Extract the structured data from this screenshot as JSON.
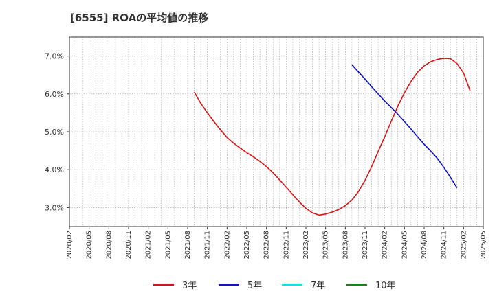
{
  "chart_data": {
    "type": "line",
    "title": "[6555]  ROAの平均値の推移",
    "xlabel": "",
    "ylabel": "",
    "ylim": [
      2.5,
      7.5
    ],
    "yticks": [
      3.0,
      4.0,
      5.0,
      6.0,
      7.0
    ],
    "ytick_labels": [
      "3.0%",
      "4.0%",
      "5.0%",
      "6.0%",
      "7.0%"
    ],
    "x_range": [
      "2020/02",
      "2025/05"
    ],
    "x_ticks": [
      "2020/02",
      "2020/05",
      "2020/08",
      "2020/11",
      "2021/02",
      "2021/05",
      "2021/08",
      "2021/11",
      "2022/02",
      "2022/05",
      "2022/08",
      "2022/11",
      "2023/02",
      "2023/05",
      "2023/08",
      "2023/11",
      "2024/02",
      "2024/05",
      "2024/08",
      "2024/11",
      "2025/02",
      "2025/05"
    ],
    "grid": true,
    "legend_position": "bottom",
    "series": [
      {
        "name": "3年",
        "color": "#dd1111",
        "points": [
          [
            "2021/09",
            6.05
          ],
          [
            "2021/10",
            5.75
          ],
          [
            "2021/11",
            5.5
          ],
          [
            "2021/12",
            5.27
          ],
          [
            "2022/01",
            5.05
          ],
          [
            "2022/02",
            4.85
          ],
          [
            "2022/03",
            4.7
          ],
          [
            "2022/04",
            4.57
          ],
          [
            "2022/05",
            4.45
          ],
          [
            "2022/06",
            4.34
          ],
          [
            "2022/07",
            4.22
          ],
          [
            "2022/08",
            4.08
          ],
          [
            "2022/09",
            3.92
          ],
          [
            "2022/10",
            3.73
          ],
          [
            "2022/11",
            3.54
          ],
          [
            "2022/12",
            3.34
          ],
          [
            "2023/01",
            3.15
          ],
          [
            "2023/02",
            2.98
          ],
          [
            "2023/03",
            2.86
          ],
          [
            "2023/04",
            2.8
          ],
          [
            "2023/05",
            2.83
          ],
          [
            "2023/06",
            2.88
          ],
          [
            "2023/07",
            2.95
          ],
          [
            "2023/08",
            3.05
          ],
          [
            "2023/09",
            3.2
          ],
          [
            "2023/10",
            3.42
          ],
          [
            "2023/11",
            3.72
          ],
          [
            "2023/12",
            4.08
          ],
          [
            "2024/01",
            4.48
          ],
          [
            "2024/02",
            4.87
          ],
          [
            "2024/03",
            5.28
          ],
          [
            "2024/04",
            5.68
          ],
          [
            "2024/05",
            6.03
          ],
          [
            "2024/06",
            6.33
          ],
          [
            "2024/07",
            6.57
          ],
          [
            "2024/08",
            6.74
          ],
          [
            "2024/09",
            6.85
          ],
          [
            "2024/10",
            6.91
          ],
          [
            "2024/11",
            6.94
          ],
          [
            "2024/12",
            6.93
          ],
          [
            "2025/01",
            6.8
          ],
          [
            "2025/02",
            6.55
          ],
          [
            "2025/03",
            6.08
          ]
        ]
      },
      {
        "name": "5年",
        "color": "#1111cc",
        "points": [
          [
            "2023/09",
            6.77
          ],
          [
            "2023/10",
            6.58
          ],
          [
            "2023/11",
            6.39
          ],
          [
            "2023/12",
            6.19
          ],
          [
            "2024/01",
            6.0
          ],
          [
            "2024/02",
            5.81
          ],
          [
            "2024/03",
            5.64
          ],
          [
            "2024/04",
            5.46
          ],
          [
            "2024/05",
            5.27
          ],
          [
            "2024/06",
            5.07
          ],
          [
            "2024/07",
            4.87
          ],
          [
            "2024/08",
            4.67
          ],
          [
            "2024/09",
            4.49
          ],
          [
            "2024/10",
            4.3
          ],
          [
            "2024/11",
            4.06
          ],
          [
            "2024/12",
            3.8
          ],
          [
            "2025/01",
            3.52
          ]
        ]
      },
      {
        "name": "7年",
        "color": "#00e5ee",
        "points": []
      },
      {
        "name": "10年",
        "color": "#118811",
        "points": []
      }
    ]
  }
}
